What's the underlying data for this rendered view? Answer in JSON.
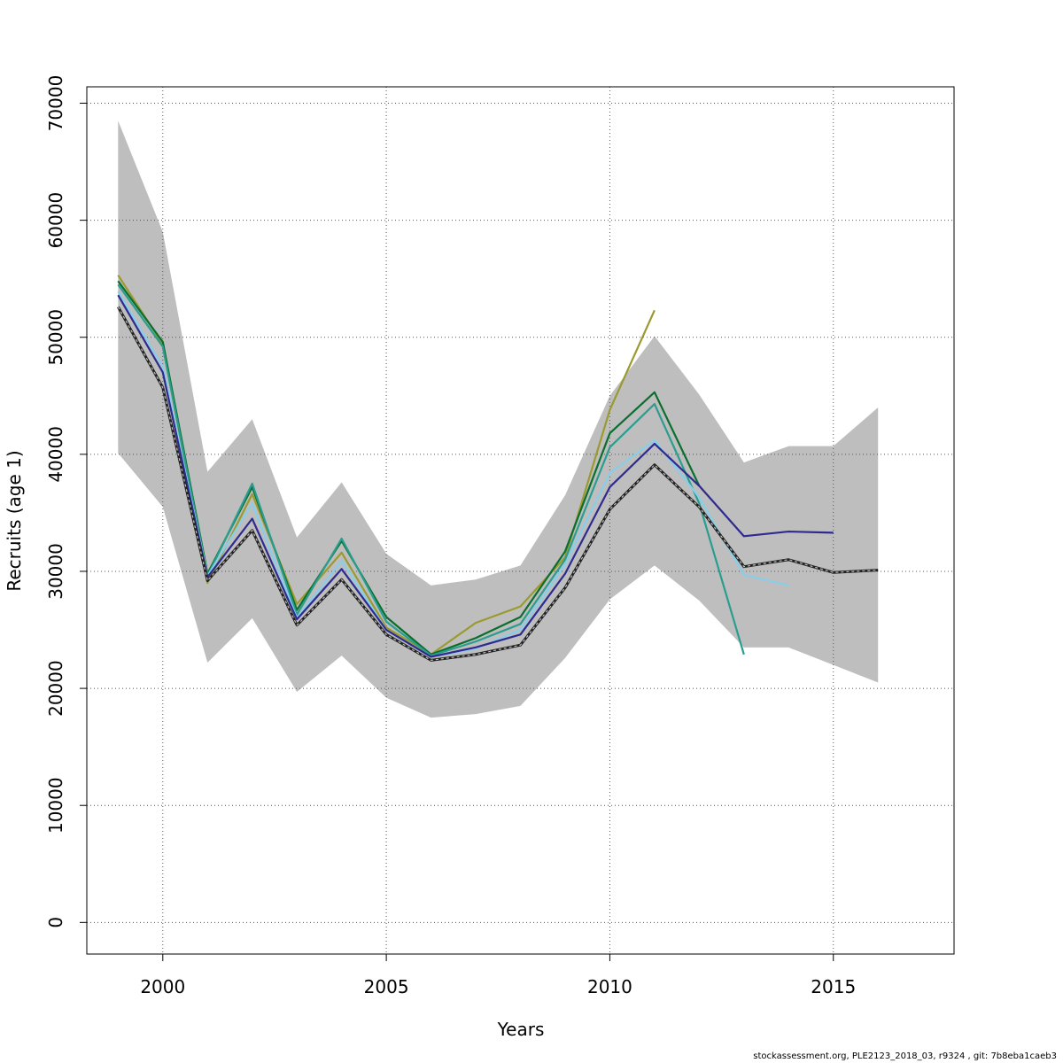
{
  "chart_data": {
    "type": "line",
    "xlabel": "Years",
    "ylabel": "Recruits (age 1)",
    "xlim": [
      1998.3,
      2017.7
    ],
    "ylim": [
      -2700,
      71400
    ],
    "x_ticks": [
      2000,
      2005,
      2010,
      2015
    ],
    "y_ticks": [
      0,
      10000,
      20000,
      30000,
      40000,
      50000,
      60000,
      70000
    ],
    "grid": true,
    "band": {
      "color": "#bebebe",
      "x": [
        1999,
        2000,
        2001,
        2002,
        2003,
        2004,
        2005,
        2006,
        2007,
        2008,
        2009,
        2010,
        2011,
        2012,
        2013,
        2014,
        2015,
        2016
      ],
      "upper": [
        68500,
        59000,
        38500,
        43000,
        32900,
        37600,
        31500,
        28800,
        29300,
        30500,
        36500,
        45000,
        50100,
        45100,
        39300,
        40700,
        40700,
        44000
      ],
      "lower": [
        40100,
        35500,
        22200,
        26000,
        19700,
        22800,
        19200,
        17500,
        17800,
        18500,
        22600,
        27600,
        30500,
        27500,
        23500,
        23500,
        22000,
        20500
      ]
    },
    "series": [
      {
        "color": "#9a9a30",
        "x": [
          1999,
          2000,
          2001,
          2002,
          2003,
          2004,
          2005,
          2006,
          2007,
          2008,
          2009,
          2010,
          2011
        ],
        "values": [
          55300,
          49400,
          29000,
          36600,
          27200,
          31600,
          25200,
          22900,
          25600,
          27000,
          31200,
          43800,
          52300
        ]
      },
      {
        "color": "#0a6e2e",
        "x": [
          1999,
          2000,
          2001,
          2002,
          2003,
          2004,
          2005,
          2006,
          2007,
          2008,
          2009,
          2010,
          2011,
          2012
        ],
        "values": [
          54800,
          49600,
          29800,
          37200,
          26700,
          32600,
          26100,
          22900,
          24300,
          26100,
          31700,
          41800,
          45300,
          37300
        ]
      },
      {
        "color": "#2a9d8f",
        "x": [
          1999,
          2000,
          2001,
          2002,
          2003,
          2004,
          2005,
          2006,
          2007,
          2008,
          2009,
          2010,
          2011,
          2012,
          2013
        ],
        "values": [
          54500,
          49200,
          29600,
          37500,
          26300,
          32800,
          25700,
          22800,
          24000,
          25500,
          31000,
          40600,
          44300,
          35800,
          22900
        ]
      },
      {
        "color": "#87ceeb",
        "x": [
          1999,
          2000,
          2001,
          2002,
          2003,
          2004,
          2005,
          2006,
          2007,
          2008,
          2009,
          2010,
          2011,
          2012,
          2013,
          2014
        ],
        "values": [
          53900,
          47500,
          29600,
          35800,
          26000,
          30900,
          25000,
          22700,
          23400,
          25000,
          30600,
          38400,
          41200,
          36300,
          29700,
          28800
        ]
      },
      {
        "color": "#2e2a8f",
        "x": [
          1999,
          2000,
          2001,
          2002,
          2003,
          2004,
          2005,
          2006,
          2007,
          2008,
          2009,
          2010,
          2011,
          2012,
          2013,
          2014,
          2015
        ],
        "values": [
          53600,
          47000,
          29500,
          34500,
          25900,
          30200,
          25000,
          22700,
          23500,
          24600,
          29800,
          37200,
          40900,
          37300,
          33000,
          33400,
          33300
        ]
      },
      {
        "color": "#222222",
        "dashed": true,
        "x": [
          1999,
          2000,
          2001,
          2002,
          2003,
          2004,
          2005,
          2006,
          2007,
          2008,
          2009,
          2010,
          2011,
          2012,
          2013,
          2014,
          2015,
          2016
        ],
        "values": [
          52600,
          45700,
          29200,
          33500,
          25400,
          29300,
          24600,
          22400,
          22900,
          23700,
          28600,
          35300,
          39100,
          35500,
          30400,
          31000,
          29900,
          30100
        ]
      }
    ]
  },
  "footer": "stockassessment.org, PLE2123_2018_03, r9324 , git: 7b8eba1caeb3"
}
